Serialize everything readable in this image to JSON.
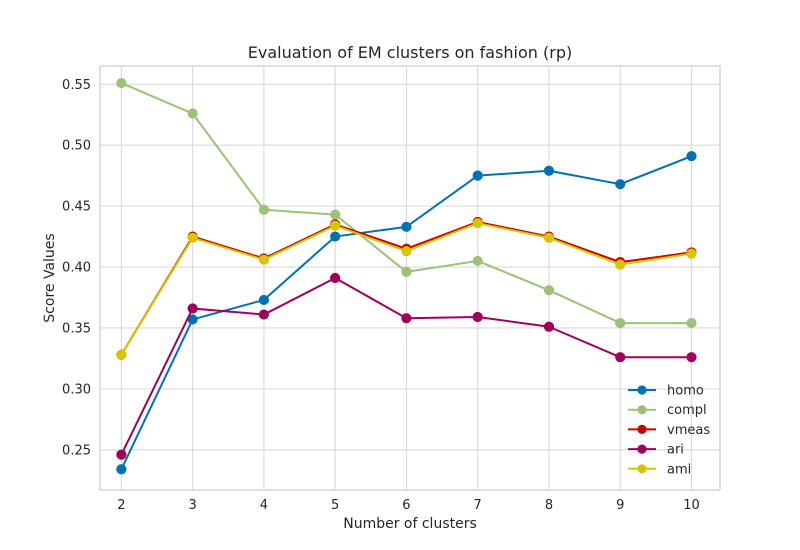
{
  "chart_data": {
    "type": "line",
    "title": "Evaluation of EM clusters on fashion (rp)",
    "xlabel": "Number of clusters",
    "ylabel": "Score Values",
    "x": [
      2,
      3,
      4,
      5,
      6,
      7,
      8,
      9,
      10
    ],
    "xlim": [
      1.7,
      10.4
    ],
    "ylim": [
      0.217,
      0.565
    ],
    "yticks": [
      0.25,
      0.3,
      0.35,
      0.4,
      0.45,
      0.5,
      0.55
    ],
    "ytick_labels": [
      "0.25",
      "0.30",
      "0.35",
      "0.40",
      "0.45",
      "0.50",
      "0.55"
    ],
    "grid": true,
    "legend_position": "lower-right",
    "series": [
      {
        "name": "homo",
        "color": "#0072b2",
        "values": [
          0.234,
          0.357,
          0.373,
          0.425,
          0.433,
          0.475,
          0.479,
          0.468,
          0.491
        ]
      },
      {
        "name": "compl",
        "color": "#9bc276",
        "values": [
          0.551,
          0.526,
          0.447,
          0.443,
          0.396,
          0.405,
          0.381,
          0.354,
          0.354
        ]
      },
      {
        "name": "vmeas",
        "color": "#c80000",
        "values": [
          0.328,
          0.425,
          0.407,
          0.435,
          0.415,
          0.437,
          0.425,
          0.404,
          0.412
        ]
      },
      {
        "name": "ari",
        "color": "#a0005a",
        "values": [
          0.246,
          0.366,
          0.361,
          0.391,
          0.358,
          0.359,
          0.351,
          0.326,
          0.326
        ]
      },
      {
        "name": "ami",
        "color": "#d8c400",
        "values": [
          0.328,
          0.424,
          0.406,
          0.434,
          0.413,
          0.436,
          0.424,
          0.402,
          0.411
        ]
      }
    ]
  }
}
